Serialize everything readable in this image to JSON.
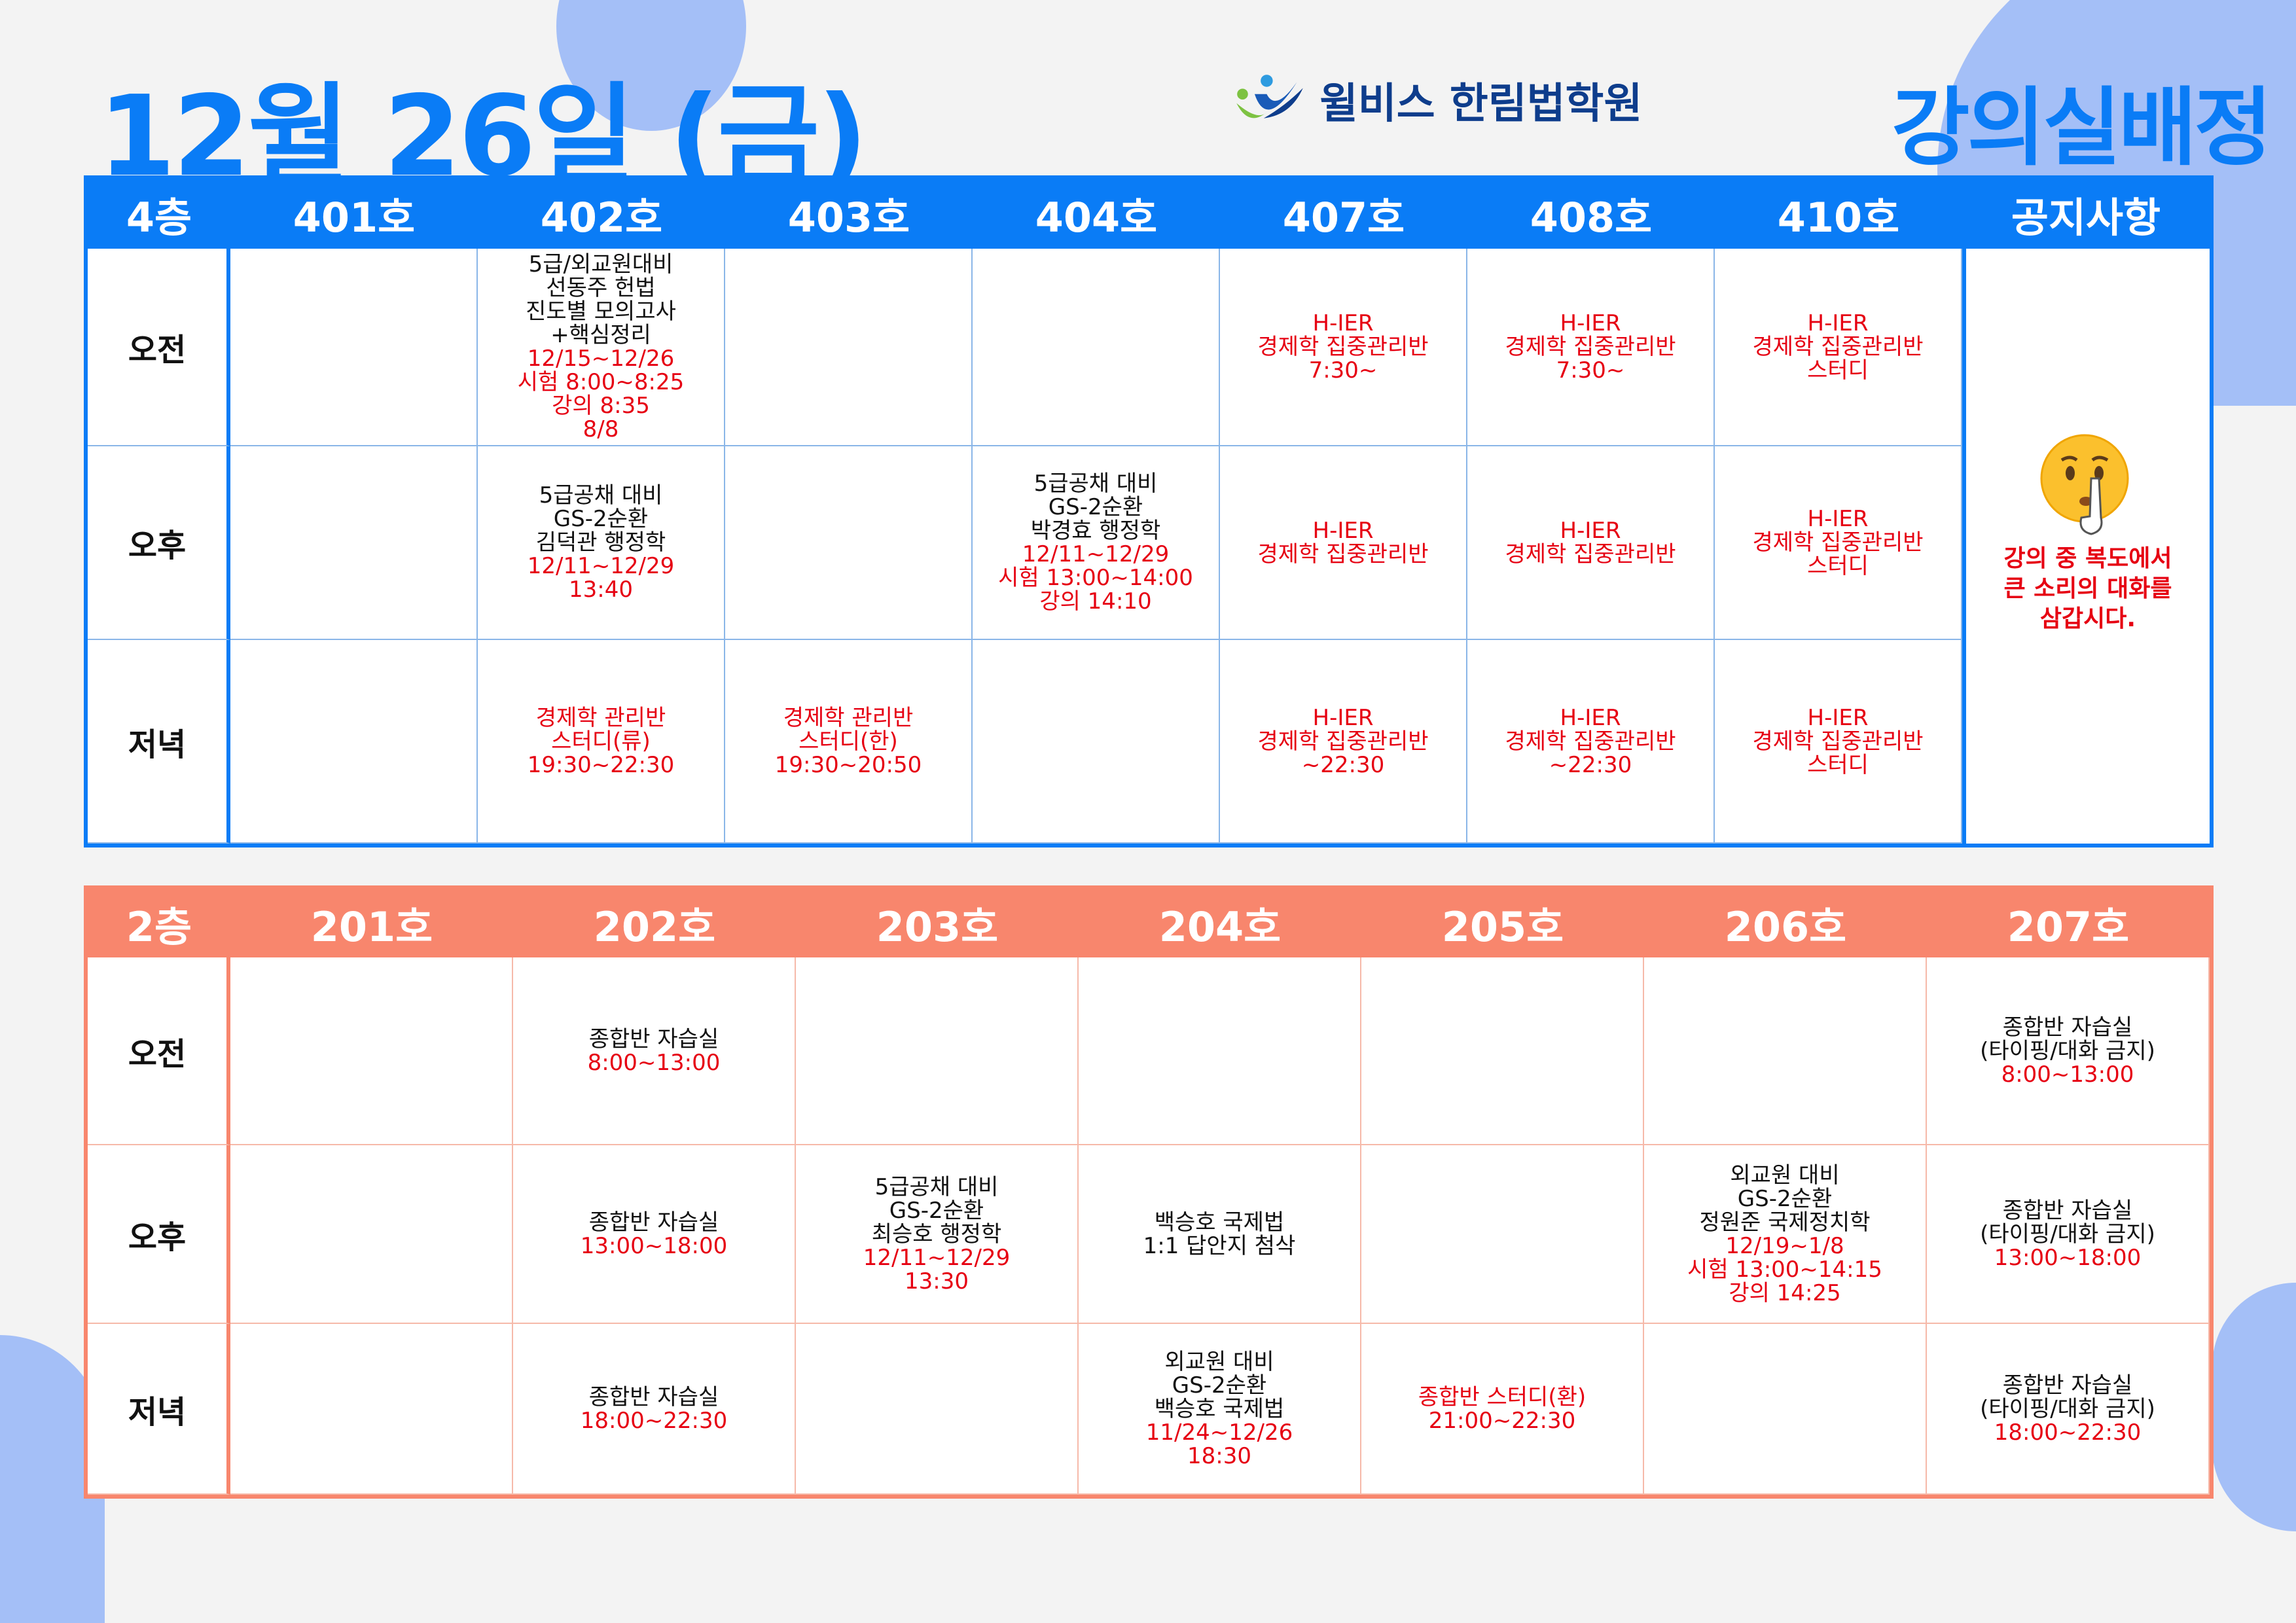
{
  "title": "12월 26일 (금)",
  "brand": {
    "logo_icon": "welbis-logo-icon",
    "name": "윌비스 한림법학원"
  },
  "heading": "강의실배정",
  "colors": {
    "blue": "#0a7cf6",
    "orange": "#f8866d",
    "red": "#e60012",
    "decor": "#a4bff7"
  },
  "upper": {
    "floor": "4층",
    "rooms": [
      "401호",
      "402호",
      "403호",
      "404호",
      "407호",
      "408호",
      "410호"
    ],
    "notice_header": "공지사항",
    "notice": {
      "icon": "shushing-face-icon",
      "lines": [
        "강의 중 복도에서",
        "큰 소리의 대화를",
        "삼갑시다."
      ]
    },
    "rows": [
      {
        "label": "오전",
        "cells": [
          [],
          [
            {
              "text": "5급/외교원대비",
              "red": false
            },
            {
              "text": "선동주 헌법",
              "red": false
            },
            {
              "text": "진도별 모의고사+핵심정리",
              "red": false
            },
            {
              "text": "12/15~12/26",
              "red": true
            },
            {
              "text": "시험 8:00~8:25",
              "red": true
            },
            {
              "text": "강의 8:35",
              "red": true
            },
            {
              "text": "8/8",
              "red": true
            }
          ],
          [],
          [],
          [
            {
              "text": "H-IER",
              "red": true
            },
            {
              "text": "경제학 집중관리반",
              "red": true
            },
            {
              "text": "7:30~",
              "red": true
            }
          ],
          [
            {
              "text": "H-IER",
              "red": true
            },
            {
              "text": "경제학 집중관리반",
              "red": true
            },
            {
              "text": "7:30~",
              "red": true
            }
          ],
          [
            {
              "text": "H-IER",
              "red": true
            },
            {
              "text": "경제학 집중관리반",
              "red": true
            },
            {
              "text": "스터디",
              "red": true
            }
          ]
        ]
      },
      {
        "label": "오후",
        "cells": [
          [],
          [
            {
              "text": "5급공채 대비",
              "red": false
            },
            {
              "text": "GS-2순환",
              "red": false
            },
            {
              "text": "김덕관 행정학",
              "red": false
            },
            {
              "text": "12/11~12/29",
              "red": true
            },
            {
              "text": "13:40",
              "red": true
            }
          ],
          [],
          [
            {
              "text": "5급공채 대비",
              "red": false
            },
            {
              "text": "GS-2순환",
              "red": false
            },
            {
              "text": "박경효 행정학",
              "red": false
            },
            {
              "text": "12/11~12/29",
              "red": true
            },
            {
              "text": "시험 13:00~14:00",
              "red": true
            },
            {
              "text": "강의 14:10",
              "red": true
            }
          ],
          [
            {
              "text": "H-IER",
              "red": true
            },
            {
              "text": "경제학 집중관리반",
              "red": true
            }
          ],
          [
            {
              "text": "H-IER",
              "red": true
            },
            {
              "text": "경제학 집중관리반",
              "red": true
            }
          ],
          [
            {
              "text": "H-IER",
              "red": true
            },
            {
              "text": "경제학 집중관리반",
              "red": true
            },
            {
              "text": "스터디",
              "red": true
            }
          ]
        ]
      },
      {
        "label": "저녁",
        "cells": [
          [],
          [
            {
              "text": "경제학 관리반",
              "red": true
            },
            {
              "text": "스터디(류)",
              "red": true
            },
            {
              "text": "19:30~22:30",
              "red": true
            }
          ],
          [
            {
              "text": "경제학 관리반",
              "red": true
            },
            {
              "text": "스터디(한)",
              "red": true
            },
            {
              "text": "19:30~20:50",
              "red": true
            }
          ],
          [],
          [
            {
              "text": "H-IER",
              "red": true
            },
            {
              "text": "경제학 집중관리반",
              "red": true
            },
            {
              "text": "~22:30",
              "red": true
            }
          ],
          [
            {
              "text": "H-IER",
              "red": true
            },
            {
              "text": "경제학 집중관리반",
              "red": true
            },
            {
              "text": "~22:30",
              "red": true
            }
          ],
          [
            {
              "text": "H-IER",
              "red": true
            },
            {
              "text": "경제학 집중관리반",
              "red": true
            },
            {
              "text": "스터디",
              "red": true
            }
          ]
        ]
      }
    ]
  },
  "lower": {
    "floor": "2층",
    "rooms": [
      "201호",
      "202호",
      "203호",
      "204호",
      "205호",
      "206호",
      "207호"
    ],
    "rows": [
      {
        "label": "오전",
        "cells": [
          [],
          [
            {
              "text": "종합반 자습실",
              "red": false
            },
            {
              "text": "8:00~13:00",
              "red": true
            }
          ],
          [],
          [],
          [],
          [],
          [
            {
              "text": "종합반 자습실",
              "red": false
            },
            {
              "text": "(타이핑/대화 금지)",
              "red": false
            },
            {
              "text": "8:00~13:00",
              "red": true
            }
          ]
        ]
      },
      {
        "label": "오후",
        "cells": [
          [],
          [
            {
              "text": "종합반 자습실",
              "red": false
            },
            {
              "text": "13:00~18:00",
              "red": true
            }
          ],
          [
            {
              "text": "5급공채 대비",
              "red": false
            },
            {
              "text": "GS-2순환",
              "red": false
            },
            {
              "text": "최승호 행정학",
              "red": false
            },
            {
              "text": "12/11~12/29",
              "red": true
            },
            {
              "text": "13:30",
              "red": true
            }
          ],
          [
            {
              "text": "백승호 국제법",
              "red": false
            },
            {
              "text": "1:1 답안지 첨삭",
              "red": false
            }
          ],
          [],
          [
            {
              "text": "외교원 대비",
              "red": false
            },
            {
              "text": "GS-2순환",
              "red": false
            },
            {
              "text": "정원준 국제정치학",
              "red": false
            },
            {
              "text": "12/19~1/8",
              "red": true
            },
            {
              "text": "시험 13:00~14:15",
              "red": true
            },
            {
              "text": "강의 14:25",
              "red": true
            }
          ],
          [
            {
              "text": "종합반 자습실",
              "red": false
            },
            {
              "text": "(타이핑/대화 금지)",
              "red": false
            },
            {
              "text": "13:00~18:00",
              "red": true
            }
          ]
        ]
      },
      {
        "label": "저녁",
        "cells": [
          [],
          [
            {
              "text": "종합반 자습실",
              "red": false
            },
            {
              "text": "18:00~22:30",
              "red": true
            }
          ],
          [],
          [
            {
              "text": "외교원 대비",
              "red": false
            },
            {
              "text": "GS-2순환",
              "red": false
            },
            {
              "text": "백승호 국제법",
              "red": false
            },
            {
              "text": "11/24~12/26",
              "red": true
            },
            {
              "text": "18:30",
              "red": true
            }
          ],
          [
            {
              "text": "종합반 스터디(환)",
              "red": true
            },
            {
              "text": "21:00~22:30",
              "red": true
            }
          ],
          [],
          [
            {
              "text": "종합반 자습실",
              "red": false
            },
            {
              "text": "(타이핑/대화 금지)",
              "red": false
            },
            {
              "text": "18:00~22:30",
              "red": true
            }
          ]
        ]
      }
    ]
  }
}
